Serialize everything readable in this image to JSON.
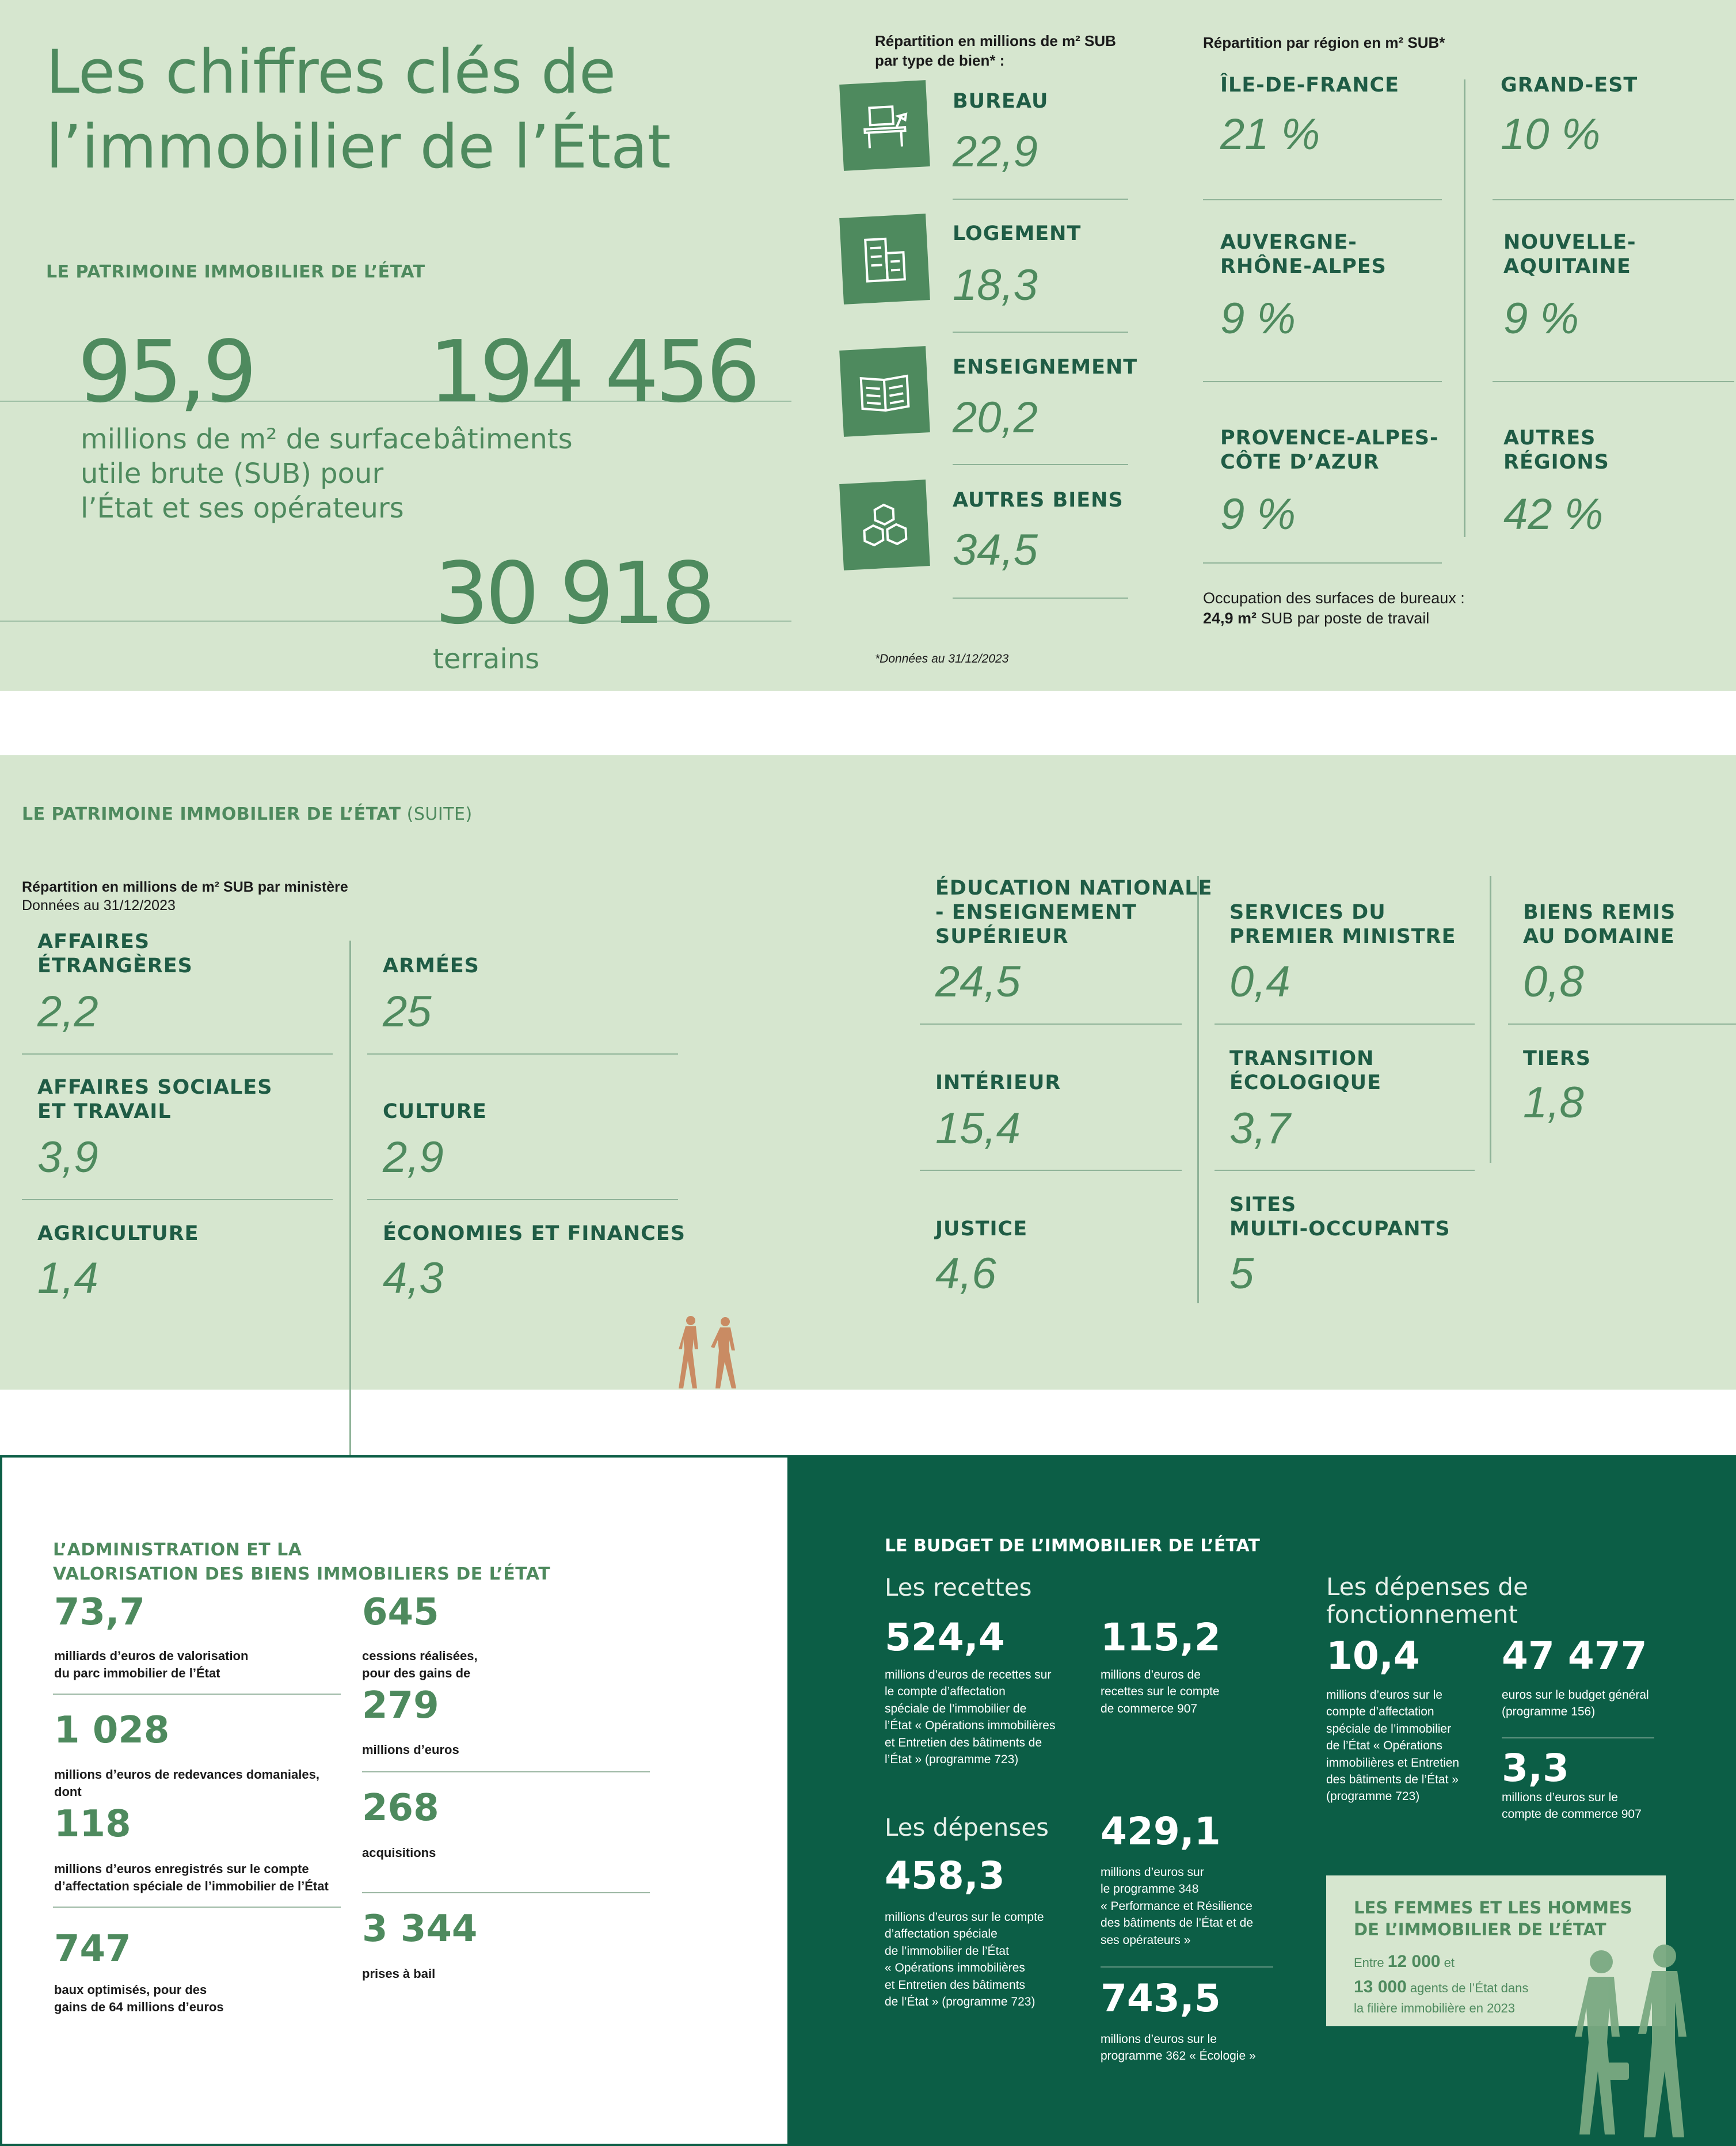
{
  "top": {
    "title_line1": "Les chiffres clés de",
    "title_line2": "l’immobilier de l’État",
    "section_label": "LE PATRIMOINE IMMOBILIER DE L’ÉTAT",
    "stats": [
      {
        "value": "95,9",
        "label_lines": [
          "millions de m² de surface",
          "utile brute (SUB) pour",
          "l’État et ses opérateurs"
        ]
      },
      {
        "value": "194 456",
        "label_lines": [
          "bâtiments"
        ]
      },
      {
        "value": "30 918",
        "label_lines": [
          "terrains"
        ]
      }
    ],
    "by_type": {
      "heading_line1": "Répartition en millions de m² SUB",
      "heading_line2": "par type de bien* :",
      "items": [
        {
          "label": "BUREAU",
          "value": "22,9",
          "icon": "desk-lamp-icon"
        },
        {
          "label": "LOGEMENT",
          "value": "18,3",
          "icon": "building-icon"
        },
        {
          "label": "ENSEIGNEMENT",
          "value": "20,2",
          "icon": "book-icon"
        },
        {
          "label": "AUTRES BIENS",
          "value": "34,5",
          "icon": "boxes-icon"
        }
      ],
      "footnote": "*Données au 31/12/2023"
    },
    "by_region": {
      "heading": "Répartition par région en m² SUB*",
      "items": [
        {
          "label_lines": [
            "ÎLE-DE-FRANCE"
          ],
          "value": "21 %"
        },
        {
          "label_lines": [
            "GRAND-EST"
          ],
          "value": "10 %"
        },
        {
          "label_lines": [
            "AUVERGNE-",
            "RHÔNE-ALPES"
          ],
          "value": "9 %"
        },
        {
          "label_lines": [
            "NOUVELLE-",
            "AQUITAINE"
          ],
          "value": "9 %"
        },
        {
          "label_lines": [
            "PROVENCE-ALPES-",
            "CÔTE D’AZUR"
          ],
          "value": "9 %"
        },
        {
          "label_lines": [
            "AUTRES",
            "RÉGIONS"
          ],
          "value": "42 %"
        }
      ],
      "occupation_line1": "Occupation des surfaces de bureaux :",
      "occupation_bold": "24,9 m²",
      "occupation_rest": " SUB par poste de travail"
    }
  },
  "middle": {
    "section_label": "LE PATRIMOINE IMMOBILIER DE L’ÉTAT",
    "section_suffix": " (SUITE)",
    "heading": "Répartition en millions de m² SUB par ministère",
    "subheading": "Données au 31/12/2023",
    "ministries": [
      {
        "label_lines": [
          "AFFAIRES",
          "ÉTRANGÈRES"
        ],
        "value": "2,2"
      },
      {
        "label_lines": [
          "ARMÉES"
        ],
        "value": "25"
      },
      {
        "label_lines": [
          "AFFAIRES SOCIALES",
          "ET TRAVAIL"
        ],
        "value": "3,9"
      },
      {
        "label_lines": [
          "CULTURE"
        ],
        "value": "2,9"
      },
      {
        "label_lines": [
          "AGRICULTURE"
        ],
        "value": "1,4"
      },
      {
        "label_lines": [
          "ÉCONOMIES ET FINANCES"
        ],
        "value": "4,3"
      },
      {
        "label_lines": [
          "ÉDUCATION NATIONALE",
          "- ENSEIGNEMENT",
          "SUPÉRIEUR"
        ],
        "value": "24,5"
      },
      {
        "label_lines": [
          "SERVICES DU",
          "PREMIER MINISTRE"
        ],
        "value": "0,4"
      },
      {
        "label_lines": [
          "BIENS REMIS",
          "AU DOMAINE"
        ],
        "value": "0,8"
      },
      {
        "label_lines": [
          "INTÉRIEUR"
        ],
        "value": "15,4"
      },
      {
        "label_lines": [
          "TRANSITION",
          "ÉCOLOGIQUE"
        ],
        "value": "3,7"
      },
      {
        "label_lines": [
          "TIERS"
        ],
        "value": "1,8"
      },
      {
        "label_lines": [
          "JUSTICE"
        ],
        "value": "4,6"
      },
      {
        "label_lines": [
          "SITES",
          "MULTI-OCCUPANTS"
        ],
        "value": "5"
      }
    ]
  },
  "admin": {
    "title_line1": "L’ADMINISTRATION ET LA",
    "title_line2": "VALORISATION DES BIENS IMMOBILIERS DE L’ÉTAT",
    "items": [
      {
        "value": "73,7",
        "label_lines": [
          "milliards d’euros de valorisation",
          "du parc immobilier de l’État"
        ]
      },
      {
        "value": "1 028",
        "label_lines": [
          "millions d’euros de redevances domaniales,",
          "dont"
        ]
      },
      {
        "value": "118",
        "label_lines": [
          "millions d’euros enregistrés sur le compte",
          "d’affectation spéciale de l’immobilier de l’État"
        ]
      },
      {
        "value": "747",
        "label_lines": [
          "baux optimisés, pour des",
          "gains de 64 millions d’euros"
        ]
      },
      {
        "value": "645",
        "label_lines": [
          "cessions réalisées,",
          "pour des gains de"
        ]
      },
      {
        "value": "279",
        "label_lines": [
          "millions d’euros"
        ]
      },
      {
        "value": "268",
        "label_lines": [
          "acquisitions"
        ]
      },
      {
        "value": "3 344",
        "label_lines": [
          "prises à bail"
        ]
      }
    ]
  },
  "budget": {
    "title": "LE BUDGET DE L’IMMOBILIER DE L’ÉTAT",
    "recettes_label": "Les recettes",
    "recettes": [
      {
        "value": "524,4",
        "label_lines": [
          "millions d’euros de recettes sur",
          "le compte d’affectation",
          "spéciale de l’immobilier de",
          "l’État « Opérations immobilières",
          "et Entretien des bâtiments de",
          "l’État » (programme 723)"
        ]
      },
      {
        "value": "115,2",
        "label_lines": [
          "millions d’euros de",
          "recettes sur le compte",
          "de commerce 907"
        ]
      }
    ],
    "depenses_label": "Les dépenses",
    "depenses": [
      {
        "value": "458,3",
        "label_lines": [
          "millions d’euros sur le compte",
          "d’affectation spéciale",
          "de l’immobilier de l’État",
          "« Opérations immobilières",
          "et Entretien des bâtiments",
          "de l’État » (programme 723)"
        ]
      },
      {
        "value": "429,1",
        "label_lines": [
          "millions d’euros sur",
          "le programme 348",
          "« Performance et Résilience",
          "des bâtiments de l’État et de",
          "ses opérateurs »"
        ]
      },
      {
        "value": "743,5",
        "label_lines": [
          "millions d’euros sur le",
          "programme 362 « Écologie »"
        ]
      }
    ],
    "fonct_label_line1": "Les dépenses de",
    "fonct_label_line2": "fonctionnement",
    "fonct": [
      {
        "value": "10,4",
        "label_lines": [
          "millions d’euros sur le",
          "compte d’affectation",
          "spéciale de l’immobilier",
          "de l’État « Opérations",
          "immobilières et Entretien",
          "des bâtiments de l’État »",
          "(programme 723)"
        ]
      },
      {
        "value": "47 477",
        "label_lines": [
          "euros sur le budget général",
          "(programme 156)"
        ]
      },
      {
        "value": "3,3",
        "label_lines": [
          "millions d’euros sur le",
          "compte de commerce 907"
        ]
      }
    ],
    "people": {
      "title_line1": "LES FEMMES ET LES HOMMES",
      "title_line2": "DE L’IMMOBILIER DE L’ÉTAT",
      "line1_pre": "Entre ",
      "line1_bold": "12 000",
      "line1_post": " et",
      "line2_bold": "13 000",
      "line2_post": " agents de l’État dans",
      "line3": "la filière immobilière en 2023"
    }
  },
  "colors": {
    "light_panel": "#d6e6cf",
    "green": "#4e8a5e",
    "dark_green": "#0c5e46",
    "walker": "#c98b63"
  }
}
